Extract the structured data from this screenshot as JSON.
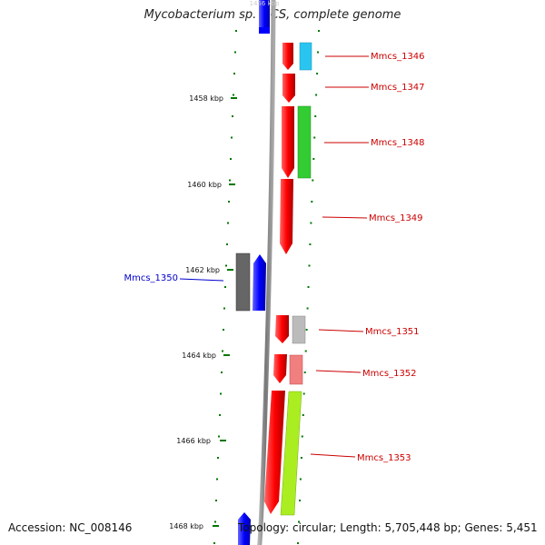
{
  "header": {
    "title": "Mycobacterium sp. MCS, complete genome"
  },
  "footer": {
    "accession": "Accession: NC_008146",
    "topology": "Topology: circular; Length: 5,705,448 bp; Genes: 5,451"
  },
  "scale_ticks": [
    {
      "label": "1458 kbp"
    },
    {
      "label": "1460 kbp"
    },
    {
      "label": "1462 kbp"
    },
    {
      "label": "1464 kbp"
    },
    {
      "label": "1466 kbp"
    },
    {
      "label": "1468 kbp"
    }
  ],
  "genes": [
    {
      "id": "Mmcs_1346",
      "strand": "reverse",
      "feature_color": "#29c5f0",
      "label_color": "#cc0000"
    },
    {
      "id": "Mmcs_1347",
      "strand": "reverse",
      "feature_color": "#ff0000",
      "label_color": "#cc0000"
    },
    {
      "id": "Mmcs_1348",
      "strand": "reverse",
      "feature_color": "#33cc33",
      "label_color": "#cc0000"
    },
    {
      "id": "Mmcs_1349",
      "strand": "reverse",
      "feature_color": "#ff0000",
      "label_color": "#cc0000"
    },
    {
      "id": "Mmcs_1350",
      "strand": "forward",
      "feature_color": "#666666",
      "label_color": "#0000cc"
    },
    {
      "id": "Mmcs_1351",
      "strand": "reverse",
      "feature_color": "#bbbbbb",
      "label_color": "#cc0000"
    },
    {
      "id": "Mmcs_1352",
      "strand": "reverse",
      "feature_color": "#f08080",
      "label_color": "#cc0000"
    },
    {
      "id": "Mmcs_1353",
      "strand": "reverse",
      "feature_color": "#aaee22",
      "label_color": "#cc0000"
    }
  ],
  "colors": {
    "reverse_cds": "#ff0000",
    "forward_cds": "#0000ff",
    "backbone": "#888888",
    "tick": "#007700"
  }
}
